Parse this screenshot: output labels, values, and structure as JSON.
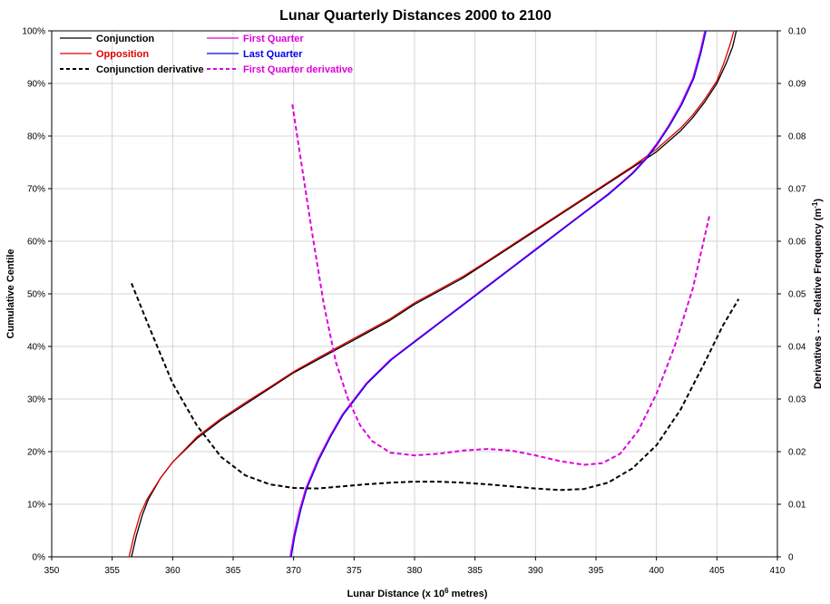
{
  "chart_data": {
    "type": "line",
    "title": "Lunar Quarterly Distances 2000 to 2100",
    "xlabel": "Lunar Distance (x 10",
    "xlabel_sup": "6",
    "xlabel_tail": " metres)",
    "ylabel": "Cumulative Centile",
    "y2label": "Derivatives - - - Relative Frequency (m",
    "y2label_sup": "-1",
    "y2label_tail": ")",
    "xlim": [
      350,
      410
    ],
    "ylim": [
      0,
      100
    ],
    "y2lim": [
      0,
      0.1
    ],
    "grid": true,
    "legend_position": "top-left",
    "x_ticks": [
      "350",
      "355",
      "360",
      "365",
      "370",
      "375",
      "380",
      "385",
      "390",
      "395",
      "400",
      "405",
      "410"
    ],
    "y_ticks": [
      "0%",
      "10%",
      "20%",
      "30%",
      "40%",
      "50%",
      "60%",
      "70%",
      "80%",
      "90%",
      "100%"
    ],
    "y2_ticks": [
      "0",
      "0.01",
      "0.02",
      "0.03",
      "0.04",
      "0.05",
      "0.06",
      "0.07",
      "0.08",
      "0.09",
      "0.10"
    ],
    "series": [
      {
        "name": "Conjunction",
        "axis": "left",
        "color": "#000000",
        "dash": "solid",
        "points": [
          [
            356.6,
            0
          ],
          [
            357.0,
            4
          ],
          [
            357.5,
            8
          ],
          [
            358,
            11
          ],
          [
            359,
            15
          ],
          [
            360,
            18
          ],
          [
            362,
            22.5
          ],
          [
            364,
            26
          ],
          [
            366,
            29
          ],
          [
            368,
            32
          ],
          [
            370,
            35
          ],
          [
            372,
            37.5
          ],
          [
            374,
            40
          ],
          [
            376,
            42.5
          ],
          [
            378,
            45
          ],
          [
            380,
            48
          ],
          [
            382,
            50.5
          ],
          [
            384,
            53
          ],
          [
            386,
            56
          ],
          [
            388,
            59
          ],
          [
            390,
            62
          ],
          [
            392,
            65
          ],
          [
            394,
            68
          ],
          [
            396,
            71
          ],
          [
            398,
            74
          ],
          [
            400,
            77
          ],
          [
            402,
            81
          ],
          [
            403,
            83.5
          ],
          [
            404,
            86.5
          ],
          [
            405,
            90
          ],
          [
            405.8,
            94
          ],
          [
            406.3,
            97
          ],
          [
            406.6,
            100
          ]
        ]
      },
      {
        "name": "Opposition",
        "axis": "left",
        "color": "#e00000",
        "dash": "solid",
        "points": [
          [
            356.4,
            0
          ],
          [
            356.8,
            4
          ],
          [
            357.3,
            8
          ],
          [
            357.9,
            11
          ],
          [
            359,
            15
          ],
          [
            360,
            18
          ],
          [
            362,
            22.8
          ],
          [
            364,
            26.3
          ],
          [
            366,
            29.3
          ],
          [
            368,
            32.2
          ],
          [
            370,
            35.2
          ],
          [
            372,
            37.8
          ],
          [
            374,
            40.3
          ],
          [
            376,
            42.8
          ],
          [
            378,
            45.3
          ],
          [
            380,
            48.3
          ],
          [
            382,
            50.8
          ],
          [
            384,
            53.3
          ],
          [
            386,
            56.2
          ],
          [
            388,
            59.2
          ],
          [
            390,
            62.2
          ],
          [
            392,
            65.2
          ],
          [
            394,
            68.2
          ],
          [
            396,
            71.2
          ],
          [
            398,
            74.2
          ],
          [
            400,
            77.5
          ],
          [
            402,
            81.5
          ],
          [
            403,
            84
          ],
          [
            404,
            87
          ],
          [
            405,
            90.5
          ],
          [
            405.6,
            94
          ],
          [
            406.1,
            97.5
          ],
          [
            406.4,
            100
          ]
        ]
      },
      {
        "name": "First Quarter",
        "axis": "left",
        "color": "#dd00dd",
        "dash": "solid",
        "points": [
          [
            369.7,
            0
          ],
          [
            370.0,
            4
          ],
          [
            370.5,
            9
          ],
          [
            371,
            13
          ],
          [
            372,
            18.5
          ],
          [
            373,
            23
          ],
          [
            374,
            27
          ],
          [
            375,
            30
          ],
          [
            376,
            33
          ],
          [
            378,
            37.5
          ],
          [
            380,
            41
          ],
          [
            382,
            44.5
          ],
          [
            384,
            48
          ],
          [
            386,
            51.5
          ],
          [
            388,
            55
          ],
          [
            390,
            58.5
          ],
          [
            392,
            62
          ],
          [
            394,
            65.5
          ],
          [
            396,
            69
          ],
          [
            397,
            71
          ],
          [
            398,
            73
          ],
          [
            399,
            75.5
          ],
          [
            400,
            78.5
          ],
          [
            401,
            82
          ],
          [
            402,
            86
          ],
          [
            403,
            91
          ],
          [
            403.6,
            96
          ],
          [
            404.0,
            100
          ]
        ]
      },
      {
        "name": "Last Quarter",
        "axis": "left",
        "color": "#0000ee",
        "dash": "solid",
        "points": [
          [
            369.8,
            0
          ],
          [
            370.1,
            4
          ],
          [
            370.6,
            9
          ],
          [
            371.1,
            13
          ],
          [
            372.1,
            18.5
          ],
          [
            373.1,
            23
          ],
          [
            374.1,
            27
          ],
          [
            375.1,
            30
          ],
          [
            376.1,
            33
          ],
          [
            378.1,
            37.5
          ],
          [
            380.1,
            41
          ],
          [
            382.1,
            44.5
          ],
          [
            384.1,
            48
          ],
          [
            386.1,
            51.5
          ],
          [
            388.1,
            55
          ],
          [
            390.1,
            58.5
          ],
          [
            392.1,
            62
          ],
          [
            394.1,
            65.5
          ],
          [
            396.1,
            69
          ],
          [
            397.1,
            71
          ],
          [
            398.1,
            73
          ],
          [
            399.1,
            75.5
          ],
          [
            400.1,
            78.5
          ],
          [
            401.1,
            82
          ],
          [
            402.1,
            86
          ],
          [
            403.1,
            91
          ],
          [
            403.7,
            96
          ],
          [
            404.1,
            100
          ]
        ]
      },
      {
        "name": "Conjunction derivative",
        "axis": "right",
        "color": "#000000",
        "dash": "dashed",
        "points": [
          [
            356.6,
            0.052
          ],
          [
            358,
            0.044
          ],
          [
            360,
            0.033
          ],
          [
            362,
            0.025
          ],
          [
            364,
            0.019
          ],
          [
            366,
            0.0155
          ],
          [
            368,
            0.0138
          ],
          [
            370,
            0.0131
          ],
          [
            372,
            0.013
          ],
          [
            374,
            0.0134
          ],
          [
            376,
            0.0138
          ],
          [
            378,
            0.0141
          ],
          [
            380,
            0.0143
          ],
          [
            382,
            0.0143
          ],
          [
            384,
            0.0141
          ],
          [
            386,
            0.0138
          ],
          [
            388,
            0.0134
          ],
          [
            390,
            0.013
          ],
          [
            392,
            0.0127
          ],
          [
            394,
            0.0129
          ],
          [
            396,
            0.0141
          ],
          [
            398,
            0.0168
          ],
          [
            400,
            0.0212
          ],
          [
            402,
            0.028
          ],
          [
            404,
            0.037
          ],
          [
            405.5,
            0.044
          ],
          [
            406.8,
            0.049
          ]
        ]
      },
      {
        "name": "First Quarter derivative",
        "axis": "right",
        "color": "#dd00dd",
        "dash": "dashed",
        "points": [
          [
            369.9,
            0.086
          ],
          [
            370.5,
            0.077
          ],
          [
            371.5,
            0.062
          ],
          [
            372.5,
            0.048
          ],
          [
            373.5,
            0.037
          ],
          [
            374.5,
            0.03
          ],
          [
            375.5,
            0.025
          ],
          [
            376.5,
            0.022
          ],
          [
            378,
            0.0198
          ],
          [
            380,
            0.0193
          ],
          [
            382,
            0.0196
          ],
          [
            384,
            0.0202
          ],
          [
            386,
            0.0205
          ],
          [
            388,
            0.0202
          ],
          [
            390,
            0.0193
          ],
          [
            392,
            0.0182
          ],
          [
            394,
            0.0175
          ],
          [
            395.5,
            0.0178
          ],
          [
            397,
            0.0196
          ],
          [
            398.5,
            0.024
          ],
          [
            400,
            0.031
          ],
          [
            401.5,
            0.04
          ],
          [
            403,
            0.051
          ],
          [
            404.4,
            0.065
          ]
        ]
      }
    ]
  }
}
